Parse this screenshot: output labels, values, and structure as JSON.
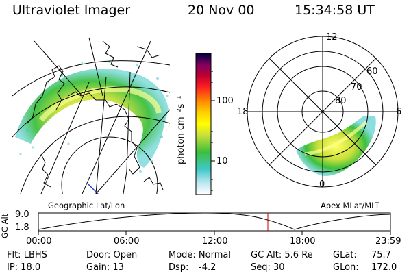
{
  "header": {
    "instrument": "Ultraviolet Imager",
    "date": "20 Nov 00",
    "time": "15:34:58 UT"
  },
  "colorbar": {
    "unit_label": "photon cm⁻²s⁻¹",
    "ticks": [
      {
        "label": "100",
        "value": 100
      },
      {
        "label": "10",
        "value": 10
      }
    ],
    "scale": "log",
    "colors": [
      "#ffffff",
      "#bfe8f0",
      "#40c8c8",
      "#3cbf3c",
      "#c8e03c",
      "#ffff00",
      "#ffd000",
      "#ff8c00",
      "#ff2020",
      "#c00030",
      "#800060",
      "#400060",
      "#000040"
    ]
  },
  "left_map": {
    "caption": "Geographic Lat/Lon"
  },
  "polar_map": {
    "caption": "Apex MLat/MLT",
    "mlt_labels": [
      {
        "label": "12",
        "pos": "top"
      },
      {
        "label": "18",
        "pos": "left"
      },
      {
        "label": "6",
        "pos": "right"
      },
      {
        "label": "0",
        "pos": "bottom"
      }
    ],
    "lat_labels": [
      "60",
      "70",
      "80"
    ]
  },
  "altitude_plot": {
    "ylabel": "GC Alt",
    "yticks": [
      "9.0",
      "1.8"
    ],
    "xticks": [
      "00:00",
      "06:00",
      "12:00",
      "18:00",
      "23:59"
    ],
    "current_time_marker": "15:34:58",
    "marker_color": "#c00000"
  },
  "footer": {
    "filter": "Flt: LBHS",
    "ip": "IP: 18.0",
    "door": "Door: Open",
    "gain": "Gain: 13",
    "mode": "Mode: Normal",
    "dsp": "Dsp:",
    "dsp_value": "-4.2",
    "gc_alt": "GC Alt: 5.6 Re",
    "seq": "Seq: 30",
    "glat": "GLat:",
    "glat_value": "75.7",
    "glon": "GLon:",
    "glon_value": "172.0"
  }
}
